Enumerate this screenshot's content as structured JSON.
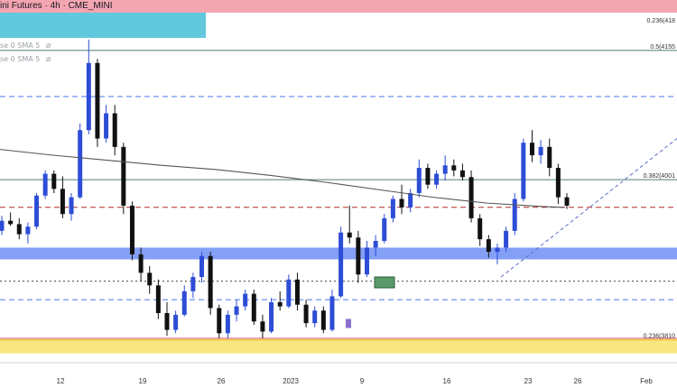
{
  "header": {
    "title": "ini Futures · 4h · CME_MINI",
    "legend": [
      {
        "label": "se 0 SMA 5",
        "icon": "eye-slash-icon"
      },
      {
        "label": "se 0 SMA 5",
        "icon": "eye-slash-icon"
      }
    ]
  },
  "chart_data": {
    "type": "candlestick",
    "ylim": [
      3785,
      4200
    ],
    "x_ticks": [
      "12",
      "19",
      "26",
      "2023",
      "9",
      "16",
      "23",
      "26",
      "Feb"
    ],
    "fib_levels": [
      {
        "label": "0.236(418",
        "value": 4186,
        "color": "#f4a6b0"
      },
      {
        "label": "0.5(4155",
        "value": 4155,
        "color": "#4c7d78"
      },
      {
        "label": "0.382(4001",
        "value": 4001,
        "color": "#4c7d78"
      },
      {
        "label": "0.236(3810",
        "value": 3810,
        "color": "#e2b93b"
      }
    ],
    "horizontal_lines": [
      {
        "value": 4100,
        "style": "dashed",
        "color": "#4a77e8"
      },
      {
        "value": 3968,
        "style": "dashed",
        "color": "#b02a2a"
      },
      {
        "value": 3880,
        "style": "dotted",
        "color": "#444444"
      },
      {
        "value": 3858,
        "style": "dashed",
        "color": "#4a77e8"
      }
    ],
    "zones": [
      {
        "from": 3906,
        "to": 3920,
        "color": "#6f8ff5"
      },
      {
        "from": 3794,
        "to": 3812,
        "color": "#f7e36a"
      }
    ],
    "sma_line": [
      [
        0,
        4037
      ],
      [
        60,
        4030
      ],
      [
        120,
        4024
      ],
      [
        180,
        4018
      ],
      [
        240,
        4013
      ],
      [
        300,
        4006
      ],
      [
        360,
        3998
      ],
      [
        420,
        3989
      ],
      [
        480,
        3980
      ],
      [
        540,
        3973
      ],
      [
        600,
        3969
      ],
      [
        625,
        3968
      ]
    ],
    "candles": [
      [
        3940,
        3958,
        3935,
        3952
      ],
      [
        3952,
        3962,
        3946,
        3948
      ],
      [
        3948,
        3955,
        3930,
        3936
      ],
      [
        3936,
        3950,
        3925,
        3945
      ],
      [
        3945,
        3985,
        3942,
        3982
      ],
      [
        3982,
        4012,
        3978,
        4008
      ],
      [
        4008,
        4012,
        3985,
        3990
      ],
      [
        3990,
        4005,
        3955,
        3960
      ],
      [
        3960,
        3985,
        3952,
        3980
      ],
      [
        3980,
        4068,
        3978,
        4060
      ],
      [
        4060,
        4168,
        4055,
        4140
      ],
      [
        4140,
        4145,
        4040,
        4050
      ],
      [
        4050,
        4090,
        4045,
        4080
      ],
      [
        4080,
        4090,
        4030,
        4040
      ],
      [
        4040,
        4045,
        3960,
        3970
      ],
      [
        3970,
        3975,
        3905,
        3912
      ],
      [
        3912,
        3920,
        3880,
        3890
      ],
      [
        3890,
        3898,
        3865,
        3875
      ],
      [
        3875,
        3882,
        3835,
        3842
      ],
      [
        3842,
        3855,
        3815,
        3822
      ],
      [
        3822,
        3845,
        3818,
        3840
      ],
      [
        3840,
        3875,
        3838,
        3868
      ],
      [
        3868,
        3890,
        3860,
        3885
      ],
      [
        3885,
        3915,
        3878,
        3910
      ],
      [
        3910,
        3915,
        3840,
        3848
      ],
      [
        3848,
        3852,
        3812,
        3818
      ],
      [
        3818,
        3845,
        3812,
        3840
      ],
      [
        3840,
        3858,
        3832,
        3850
      ],
      [
        3850,
        3870,
        3845,
        3865
      ],
      [
        3865,
        3870,
        3828,
        3832
      ],
      [
        3832,
        3840,
        3812,
        3820
      ],
      [
        3820,
        3860,
        3818,
        3855
      ],
      [
        3855,
        3868,
        3845,
        3850
      ],
      [
        3850,
        3888,
        3848,
        3882
      ],
      [
        3882,
        3890,
        3845,
        3852
      ],
      [
        3852,
        3858,
        3825,
        3830
      ],
      [
        3830,
        3850,
        3825,
        3845
      ],
      [
        3845,
        3850,
        3818,
        3822
      ],
      [
        3822,
        3870,
        3820,
        3862
      ],
      [
        3862,
        3945,
        3860,
        3938
      ],
      [
        3938,
        3970,
        3925,
        3932
      ],
      [
        3932,
        3940,
        3878,
        3888
      ],
      [
        3888,
        3928,
        3885,
        3920
      ],
      [
        3920,
        3935,
        3910,
        3928
      ],
      [
        3928,
        3960,
        3925,
        3955
      ],
      [
        3955,
        3982,
        3950,
        3978
      ],
      [
        3978,
        3995,
        3960,
        3968
      ],
      [
        3968,
        3990,
        3962,
        3985
      ],
      [
        3985,
        4025,
        3980,
        4015
      ],
      [
        4015,
        4020,
        3990,
        3995
      ],
      [
        3995,
        4012,
        3990,
        4008
      ],
      [
        4008,
        4030,
        4000,
        4018
      ],
      [
        4018,
        4025,
        4005,
        4012
      ],
      [
        4012,
        4020,
        4000,
        4004
      ],
      [
        4004,
        4012,
        3950,
        3955
      ],
      [
        3955,
        3960,
        3922,
        3930
      ],
      [
        3930,
        3935,
        3908,
        3915
      ],
      [
        3915,
        3925,
        3900,
        3920
      ],
      [
        3920,
        3945,
        3915,
        3940
      ],
      [
        3940,
        3985,
        3935,
        3978
      ],
      [
        3978,
        4050,
        3975,
        4045
      ],
      [
        4045,
        4060,
        4022,
        4030
      ],
      [
        4030,
        4048,
        4020,
        4040
      ],
      [
        4040,
        4050,
        4005,
        4015
      ],
      [
        4015,
        4020,
        3972,
        3980
      ],
      [
        3980,
        3985,
        3966,
        3970
      ]
    ]
  }
}
